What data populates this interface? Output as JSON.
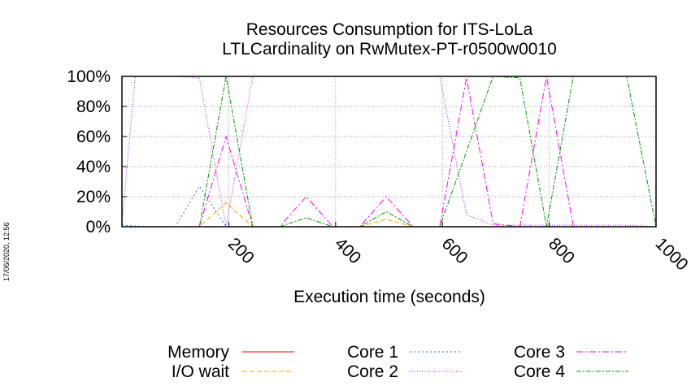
{
  "timestamp": "17/06/2020, 12:56",
  "chart_data": {
    "type": "line",
    "title": "Resources Consumption for ITS-LoLa",
    "subtitle": "LTLCardinality on RwMutex-PT-r0500w0010",
    "xlabel": "Execution time (seconds)",
    "ylabel": "",
    "xlim": [
      0,
      1000
    ],
    "ylim": [
      0,
      100
    ],
    "xticks": [
      200,
      400,
      600,
      800,
      1000
    ],
    "yticks": [
      0,
      20,
      40,
      60,
      80,
      100
    ],
    "xtick_labels": [
      "200",
      "400",
      "600",
      "800",
      "1000"
    ],
    "ytick_labels": [
      "0%",
      "20%",
      "40%",
      "60%",
      "80%",
      "100%"
    ],
    "grid": true,
    "legend_position": "bottom",
    "series": [
      {
        "name": "Memory",
        "color": "#ff0000",
        "dash": "none",
        "x": [
          0,
          50,
          100,
          150,
          200,
          250,
          300,
          350,
          400,
          450,
          500,
          550,
          600,
          650,
          700,
          750,
          800,
          850,
          900,
          950,
          1000
        ],
        "y": [
          0,
          0,
          0,
          0,
          0,
          0,
          0,
          0,
          0,
          0,
          0,
          0,
          0,
          0,
          0,
          0,
          0,
          0,
          0,
          0,
          0
        ]
      },
      {
        "name": "I/O wait",
        "color": "#ffa500",
        "dash": "6,3",
        "x": [
          0,
          50,
          100,
          145,
          195,
          245,
          295,
          345,
          395,
          445,
          495,
          545,
          595,
          645,
          695,
          745,
          795,
          845,
          895,
          945,
          1000
        ],
        "y": [
          0,
          0,
          0,
          0,
          16,
          0,
          0,
          0,
          0,
          0,
          5,
          0,
          0,
          0,
          0,
          0,
          0,
          0,
          0,
          0,
          0
        ]
      },
      {
        "name": "Core 1",
        "color": "#4169e1",
        "dash": "2,3",
        "x": [
          0,
          50,
          100,
          145,
          195,
          245,
          295,
          345,
          395,
          445,
          495,
          545,
          595,
          645,
          695,
          745,
          795,
          845,
          895,
          945,
          1000
        ],
        "y": [
          1,
          0,
          0,
          27,
          0,
          0,
          0,
          0,
          0,
          0,
          0,
          0,
          0,
          0,
          0,
          0,
          0,
          0,
          0,
          0,
          0
        ]
      },
      {
        "name": "Core 2",
        "color": "#a020f0",
        "dash": "1,2",
        "x": [
          0,
          25,
          100,
          145,
          195,
          245,
          295,
          345,
          395,
          445,
          495,
          545,
          595,
          645,
          695,
          745,
          795,
          845,
          895,
          945,
          1000
        ],
        "y": [
          2,
          100,
          100,
          99,
          0,
          100,
          100,
          100,
          100,
          100,
          100,
          100,
          100,
          8,
          1,
          1,
          1,
          1,
          1,
          1,
          0
        ]
      },
      {
        "name": "Core 3",
        "color": "#ff00ff",
        "dash": "8,3,2,3",
        "x": [
          0,
          50,
          100,
          145,
          195,
          245,
          295,
          345,
          395,
          445,
          495,
          545,
          595,
          645,
          695,
          745,
          795,
          845,
          895,
          945,
          1000
        ],
        "y": [
          0,
          0,
          0,
          0,
          60,
          0,
          0,
          20,
          0,
          0,
          20,
          0,
          0,
          99,
          2,
          0,
          100,
          0,
          0,
          0,
          0
        ]
      },
      {
        "name": "Core 4",
        "color": "#009900",
        "dash": "6,2,2,2",
        "x": [
          0,
          50,
          100,
          145,
          195,
          245,
          295,
          345,
          395,
          445,
          495,
          545,
          595,
          645,
          695,
          745,
          795,
          845,
          895,
          945,
          1000
        ],
        "y": [
          0,
          0,
          0,
          0,
          100,
          0,
          0,
          6,
          0,
          0,
          10,
          0,
          0,
          50,
          100,
          99,
          0,
          100,
          100,
          100,
          0
        ]
      }
    ]
  }
}
